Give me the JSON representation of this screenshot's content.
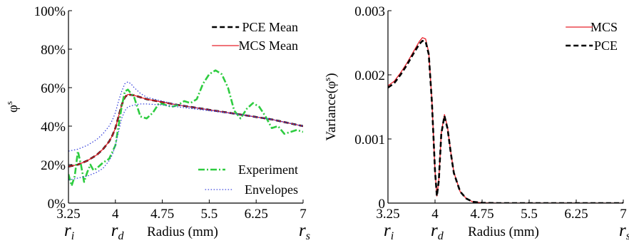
{
  "chart_data": [
    {
      "type": "line",
      "ylabel": "φs",
      "ylabel_base": "φ",
      "ylabel_sup": "s",
      "xlabel": "Radius (mm)",
      "xlim": [
        3.25,
        7
      ],
      "ylim": [
        0,
        100
      ],
      "x_ticks": [
        "3.25",
        "4",
        "4.75",
        "5.5",
        "6.25",
        "7"
      ],
      "x_tick_values": [
        3.25,
        4,
        4.75,
        5.5,
        6.25,
        7
      ],
      "y_ticks": [
        "0%",
        "20%",
        "40%",
        "60%",
        "80%",
        "100%"
      ],
      "y_tick_values": [
        0,
        20,
        40,
        60,
        80,
        100
      ],
      "x_markers": [
        {
          "base": "r",
          "sub": "i",
          "x": 3.25
        },
        {
          "base": "r",
          "sub": "d",
          "x": 4.0
        },
        {
          "base": "r",
          "sub": "s",
          "x": 7.0
        }
      ],
      "legend_top": "top-right",
      "legend_bottom": "bottom-right",
      "series": [
        {
          "name": "PCE Mean",
          "color": "#000000",
          "style": "dashed",
          "legend": "top",
          "x": [
            3.25,
            3.4,
            3.55,
            3.7,
            3.8,
            3.9,
            3.95,
            4.0,
            4.05,
            4.1,
            4.15,
            4.2,
            4.3,
            4.4,
            4.5,
            4.75,
            5.0,
            5.5,
            6.0,
            6.5,
            7.0
          ],
          "y": [
            19,
            20,
            22,
            25,
            28,
            32,
            35,
            39,
            45,
            51,
            55,
            56.5,
            56,
            55,
            54,
            52.5,
            51,
            48.5,
            46,
            43.5,
            40
          ]
        },
        {
          "name": "MCS Mean",
          "color": "#e8202a",
          "style": "solid",
          "legend": "top",
          "x": [
            3.25,
            3.4,
            3.55,
            3.7,
            3.8,
            3.9,
            3.95,
            4.0,
            4.05,
            4.1,
            4.15,
            4.2,
            4.3,
            4.4,
            4.5,
            4.75,
            5.0,
            5.5,
            6.0,
            6.5,
            7.0
          ],
          "y": [
            19,
            20,
            22,
            25,
            28,
            32,
            35,
            39,
            45,
            51,
            55,
            56.5,
            56,
            55,
            54,
            52.5,
            51,
            48.5,
            46,
            43.5,
            40
          ]
        },
        {
          "name": "Experiment",
          "color": "#2ecc40",
          "style": "dashdot",
          "legend": "bottom",
          "x": [
            3.25,
            3.3,
            3.35,
            3.4,
            3.45,
            3.5,
            3.55,
            3.6,
            3.65,
            3.7,
            3.8,
            3.9,
            4.0,
            4.05,
            4.1,
            4.15,
            4.2,
            4.25,
            4.3,
            4.35,
            4.4,
            4.5,
            4.6,
            4.7,
            4.8,
            4.9,
            5.0,
            5.1,
            5.2,
            5.3,
            5.4,
            5.5,
            5.6,
            5.7,
            5.8,
            5.9,
            6.0,
            6.1,
            6.2,
            6.3,
            6.4,
            6.5,
            6.6,
            6.7,
            6.8,
            6.9,
            7.0
          ],
          "y": [
            15,
            9,
            14,
            27,
            20,
            11,
            16,
            20,
            17,
            18,
            21,
            23,
            30,
            40,
            50,
            58,
            59,
            57,
            55,
            50,
            45,
            44,
            47,
            52,
            51,
            50,
            51,
            53,
            52,
            54,
            62,
            67,
            69,
            67,
            60,
            48,
            44,
            49,
            52,
            50,
            45,
            39,
            40,
            36,
            37,
            38,
            37
          ]
        },
        {
          "name": "Envelopes",
          "color": "#3a44dd",
          "style": "dotted",
          "legend": "bottom",
          "x": [
            3.25,
            3.4,
            3.55,
            3.7,
            3.8,
            3.9,
            3.95,
            4.0,
            4.05,
            4.1,
            4.15,
            4.2,
            4.25,
            4.3,
            4.4,
            4.5,
            4.75,
            5.0,
            5.5,
            6.0,
            6.5,
            7.0
          ],
          "y": [
            27,
            28,
            30,
            33,
            36,
            40,
            43,
            47,
            53,
            58,
            62,
            63,
            62,
            60,
            57,
            55,
            53,
            51,
            48.5,
            46,
            43.5,
            40
          ]
        },
        {
          "name": "",
          "color": "#3a44dd",
          "style": "dotted",
          "legend": "none",
          "x": [
            3.25,
            3.4,
            3.55,
            3.7,
            3.8,
            3.9,
            3.95,
            4.0,
            4.05,
            4.1,
            4.15,
            4.2,
            4.3,
            4.4,
            4.5,
            4.75,
            5.0,
            5.5,
            6.0,
            6.5,
            7.0
          ],
          "y": [
            12,
            13,
            14,
            16,
            18,
            22,
            25,
            30,
            37,
            44,
            48,
            50,
            51,
            51.5,
            51.5,
            51,
            50,
            48,
            46,
            43.5,
            40
          ]
        }
      ]
    },
    {
      "type": "line",
      "ylabel": "Variance(φs)",
      "ylabel_base": "Variance(φ",
      "ylabel_sup": "s",
      "ylabel_close": ")",
      "xlabel": "Radius (mm)",
      "xlim": [
        3.25,
        7
      ],
      "ylim": [
        0,
        0.003
      ],
      "x_ticks": [
        "3.25",
        "4",
        "4.75",
        "5.5",
        "6.25",
        "7"
      ],
      "x_tick_values": [
        3.25,
        4,
        4.75,
        5.5,
        6.25,
        7
      ],
      "y_ticks": [
        "0",
        "0.001",
        "0.002",
        "0.003"
      ],
      "y_tick_values": [
        0,
        0.001,
        0.002,
        0.003
      ],
      "x_markers": [
        {
          "base": "r",
          "sub": "i",
          "x": 3.25
        },
        {
          "base": "r",
          "sub": "d",
          "x": 4.0
        },
        {
          "base": "r",
          "sub": "s",
          "x": 7.0
        }
      ],
      "legend_top": "top-right",
      "series": [
        {
          "name": "MCS",
          "color": "#e8202a",
          "style": "solid",
          "legend": "top",
          "x": [
            3.25,
            3.35,
            3.45,
            3.55,
            3.65,
            3.75,
            3.8,
            3.85,
            3.9,
            3.95,
            4.0,
            4.03,
            4.06,
            4.1,
            4.15,
            4.2,
            4.25,
            4.3,
            4.4,
            4.5,
            4.6,
            4.75,
            5.0,
            5.5,
            6.0,
            7.0
          ],
          "y": [
            0.00183,
            0.0019,
            0.00203,
            0.00218,
            0.00235,
            0.00252,
            0.00258,
            0.00256,
            0.00235,
            0.0016,
            0.0005,
            0.00011,
            0.00035,
            0.0011,
            0.00138,
            0.00118,
            0.0008,
            0.00048,
            0.00018,
            7e-05,
            2e-05,
            5e-06,
            0,
            0,
            0,
            0
          ]
        },
        {
          "name": "PCE",
          "color": "#000000",
          "style": "dashed",
          "legend": "top",
          "x": [
            3.25,
            3.35,
            3.45,
            3.55,
            3.65,
            3.75,
            3.8,
            3.85,
            3.9,
            3.95,
            4.0,
            4.03,
            4.06,
            4.1,
            4.15,
            4.2,
            4.25,
            4.3,
            4.4,
            4.5,
            4.6,
            4.75,
            5.0,
            5.5,
            6.0,
            7.0
          ],
          "y": [
            0.0018,
            0.00187,
            0.002,
            0.00215,
            0.00232,
            0.00248,
            0.00253,
            0.00252,
            0.00232,
            0.00158,
            0.0005,
            0.00011,
            0.00035,
            0.00108,
            0.00136,
            0.00116,
            0.00079,
            0.00047,
            0.00018,
            7e-05,
            2e-05,
            5e-06,
            0,
            0,
            0,
            0
          ]
        }
      ]
    }
  ]
}
